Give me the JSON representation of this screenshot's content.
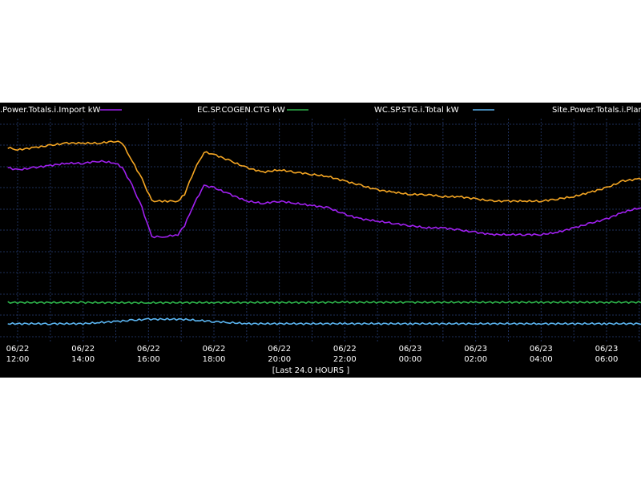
{
  "colors": {
    "background": "#000000",
    "grid": "#1e2f5a",
    "page": "#ffffff"
  },
  "chart_data": {
    "type": "line",
    "grid": true,
    "legend_placement": "top",
    "time_range_label": "[Last 24.0 HOURS ]",
    "x_ticks": [
      {
        "date": "06/22",
        "time": "12:00",
        "hour": 12
      },
      {
        "date": "06/22",
        "time": "14:00",
        "hour": 14
      },
      {
        "date": "06/22",
        "time": "16:00",
        "hour": 16
      },
      {
        "date": "06/22",
        "time": "18:00",
        "hour": 18
      },
      {
        "date": "06/22",
        "time": "20:00",
        "hour": 20
      },
      {
        "date": "06/22",
        "time": "22:00",
        "hour": 22
      },
      {
        "date": "06/23",
        "time": "00:00",
        "hour": 24
      },
      {
        "date": "06/23",
        "time": "02:00",
        "hour": 26
      },
      {
        "date": "06/23",
        "time": "04:00",
        "hour": 28
      },
      {
        "date": "06/23",
        "time": "06:00",
        "hour": 30
      }
    ],
    "x_range": [
      11.7,
      31.2
    ],
    "y_range": [
      0,
      1
    ],
    "series": [
      {
        "name": "Site.Power.Totals.i.Import kW",
        "legend_label": ".Power.Totals.i.Import kW",
        "color": "#a020f0",
        "points": [
          [
            11.7,
            0.78
          ],
          [
            12.0,
            0.77
          ],
          [
            12.5,
            0.78
          ],
          [
            13.0,
            0.79
          ],
          [
            13.5,
            0.8
          ],
          [
            14.0,
            0.8
          ],
          [
            14.5,
            0.81
          ],
          [
            15.0,
            0.8
          ],
          [
            15.2,
            0.78
          ],
          [
            15.5,
            0.7
          ],
          [
            15.8,
            0.6
          ],
          [
            16.1,
            0.47
          ],
          [
            16.5,
            0.47
          ],
          [
            16.9,
            0.48
          ],
          [
            17.1,
            0.52
          ],
          [
            17.4,
            0.62
          ],
          [
            17.7,
            0.7
          ],
          [
            18.0,
            0.69
          ],
          [
            18.5,
            0.66
          ],
          [
            19.0,
            0.63
          ],
          [
            19.5,
            0.62
          ],
          [
            20.0,
            0.63
          ],
          [
            20.5,
            0.62
          ],
          [
            21.0,
            0.61
          ],
          [
            21.5,
            0.6
          ],
          [
            22.0,
            0.57
          ],
          [
            22.5,
            0.55
          ],
          [
            23.0,
            0.54
          ],
          [
            23.5,
            0.53
          ],
          [
            24.0,
            0.52
          ],
          [
            24.5,
            0.51
          ],
          [
            25.0,
            0.51
          ],
          [
            25.5,
            0.5
          ],
          [
            26.0,
            0.49
          ],
          [
            26.5,
            0.48
          ],
          [
            27.0,
            0.48
          ],
          [
            27.5,
            0.48
          ],
          [
            28.0,
            0.48
          ],
          [
            28.5,
            0.49
          ],
          [
            29.0,
            0.51
          ],
          [
            29.5,
            0.53
          ],
          [
            30.0,
            0.55
          ],
          [
            30.5,
            0.58
          ],
          [
            31.0,
            0.6
          ],
          [
            31.2,
            0.6
          ]
        ]
      },
      {
        "name": "EC.SP.COGEN.CTG kW",
        "legend_label": "EC.SP.COGEN.CTG kW",
        "color": "#2db34a",
        "points": [
          [
            11.7,
            0.175
          ],
          [
            14.0,
            0.175
          ],
          [
            16.0,
            0.174
          ],
          [
            18.0,
            0.175
          ],
          [
            20.0,
            0.175
          ],
          [
            22.0,
            0.176
          ],
          [
            24.0,
            0.176
          ],
          [
            26.0,
            0.176
          ],
          [
            28.0,
            0.176
          ],
          [
            30.0,
            0.176
          ],
          [
            31.2,
            0.176
          ]
        ]
      },
      {
        "name": "WC.SP.STG.i.Total kW",
        "legend_label": "WC.SP.STG.i.Total kW",
        "color": "#5ab4f0",
        "points": [
          [
            11.7,
            0.08
          ],
          [
            13.0,
            0.08
          ],
          [
            14.0,
            0.08
          ],
          [
            14.5,
            0.085
          ],
          [
            15.0,
            0.09
          ],
          [
            15.5,
            0.095
          ],
          [
            16.0,
            0.1
          ],
          [
            17.0,
            0.1
          ],
          [
            17.5,
            0.095
          ],
          [
            18.0,
            0.09
          ],
          [
            18.5,
            0.085
          ],
          [
            19.0,
            0.08
          ],
          [
            20.0,
            0.08
          ],
          [
            22.0,
            0.08
          ],
          [
            24.0,
            0.08
          ],
          [
            26.0,
            0.08
          ],
          [
            28.0,
            0.08
          ],
          [
            30.0,
            0.08
          ],
          [
            31.2,
            0.08
          ]
        ]
      },
      {
        "name": "Site.Power.Totals.i.Plant",
        "legend_label": "Site.Power.Totals.i.Plant",
        "color": "#f5a623",
        "points": [
          [
            11.7,
            0.87
          ],
          [
            12.0,
            0.86
          ],
          [
            12.5,
            0.87
          ],
          [
            13.0,
            0.88
          ],
          [
            13.5,
            0.89
          ],
          [
            14.0,
            0.89
          ],
          [
            14.5,
            0.89
          ],
          [
            15.0,
            0.9
          ],
          [
            15.2,
            0.89
          ],
          [
            15.5,
            0.81
          ],
          [
            15.8,
            0.73
          ],
          [
            16.1,
            0.63
          ],
          [
            16.5,
            0.63
          ],
          [
            16.9,
            0.63
          ],
          [
            17.1,
            0.66
          ],
          [
            17.4,
            0.77
          ],
          [
            17.7,
            0.85
          ],
          [
            18.0,
            0.84
          ],
          [
            18.5,
            0.81
          ],
          [
            19.0,
            0.78
          ],
          [
            19.5,
            0.76
          ],
          [
            20.0,
            0.77
          ],
          [
            20.5,
            0.76
          ],
          [
            21.0,
            0.75
          ],
          [
            21.5,
            0.74
          ],
          [
            22.0,
            0.72
          ],
          [
            22.5,
            0.7
          ],
          [
            23.0,
            0.68
          ],
          [
            23.5,
            0.67
          ],
          [
            24.0,
            0.66
          ],
          [
            24.5,
            0.66
          ],
          [
            25.0,
            0.65
          ],
          [
            25.5,
            0.65
          ],
          [
            26.0,
            0.64
          ],
          [
            26.5,
            0.63
          ],
          [
            27.0,
            0.63
          ],
          [
            27.5,
            0.63
          ],
          [
            28.0,
            0.63
          ],
          [
            28.5,
            0.64
          ],
          [
            29.0,
            0.65
          ],
          [
            29.5,
            0.67
          ],
          [
            30.0,
            0.69
          ],
          [
            30.5,
            0.72
          ],
          [
            31.0,
            0.73
          ],
          [
            31.2,
            0.73
          ]
        ]
      }
    ]
  }
}
